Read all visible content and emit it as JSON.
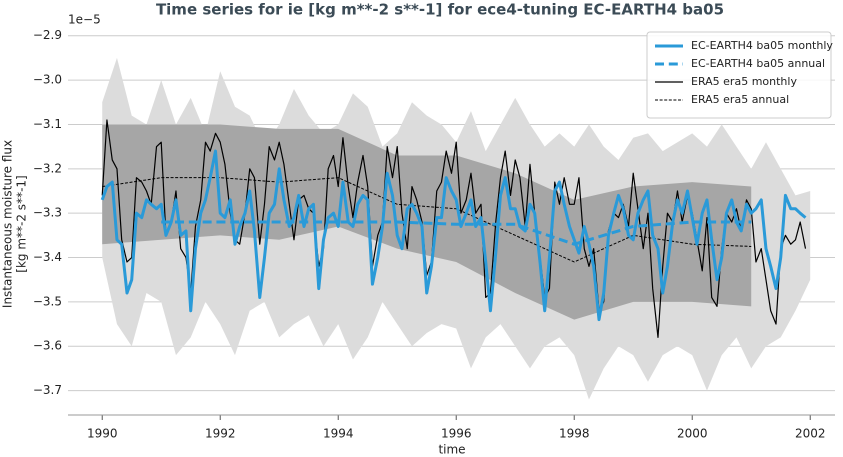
{
  "chart_data": {
    "type": "line",
    "title": "Time series for ie [kg m**-2 s**-1] for ece4-tuning EC-EARTH4 ba05",
    "xlabel": "time",
    "ylabel": [
      "Instantaneous moisture flux",
      "[kg m**-2 s**-1]"
    ],
    "y_offset_label": "1e−5",
    "xlim": [
      1989.42,
      2002.42
    ],
    "xticks": [
      1990,
      1992,
      1994,
      1996,
      1998,
      2000,
      2002
    ],
    "ylim": [
      -3.755,
      -2.86
    ],
    "yticks": [
      {
        "value": -3.7,
        "label": "−3.7"
      },
      {
        "value": -3.6,
        "label": "−3.6"
      },
      {
        "value": -3.5,
        "label": "−3.5"
      },
      {
        "value": -3.4,
        "label": "−3.4"
      },
      {
        "value": -3.3,
        "label": "−3.3"
      },
      {
        "value": -3.2,
        "label": "−3.2"
      },
      {
        "value": -3.1,
        "label": "−3.1"
      },
      {
        "value": -3.0,
        "label": "−3.0"
      },
      {
        "value": -2.9,
        "label": "−2.9"
      }
    ],
    "grid": true,
    "legend_loc": "upper right",
    "x": [
      1990.0,
      1990.08,
      1990.17,
      1990.25,
      1990.33,
      1990.42,
      1990.5,
      1990.58,
      1990.67,
      1990.75,
      1990.83,
      1990.92,
      1991.0,
      1991.08,
      1991.17,
      1991.25,
      1991.33,
      1991.42,
      1991.5,
      1991.58,
      1991.67,
      1991.75,
      1991.83,
      1991.92,
      1992.0,
      1992.08,
      1992.17,
      1992.25,
      1992.33,
      1992.42,
      1992.5,
      1992.58,
      1992.67,
      1992.75,
      1992.83,
      1992.92,
      1993.0,
      1993.08,
      1993.17,
      1993.25,
      1993.33,
      1993.42,
      1993.5,
      1993.58,
      1993.67,
      1993.75,
      1993.83,
      1993.92,
      1994.0,
      1994.08,
      1994.17,
      1994.25,
      1994.33,
      1994.42,
      1994.5,
      1994.58,
      1994.67,
      1994.75,
      1994.83,
      1994.92,
      1995.0,
      1995.08,
      1995.17,
      1995.25,
      1995.33,
      1995.42,
      1995.5,
      1995.58,
      1995.67,
      1995.75,
      1995.83,
      1995.92,
      1996.0,
      1996.08,
      1996.17,
      1996.25,
      1996.33,
      1996.42,
      1996.5,
      1996.58,
      1996.67,
      1996.75,
      1996.83,
      1996.92,
      1997.0,
      1997.08,
      1997.17,
      1997.25,
      1997.33,
      1997.42,
      1997.5,
      1997.58,
      1997.67,
      1997.75,
      1997.83,
      1997.92,
      1998.0,
      1998.08,
      1998.17,
      1998.25,
      1998.33,
      1998.42,
      1998.5,
      1998.58,
      1998.67,
      1998.75,
      1998.83,
      1998.92,
      1999.0,
      1999.08,
      1999.17,
      1999.25,
      1999.33,
      1999.42,
      1999.5,
      1999.58,
      1999.67,
      1999.75,
      1999.83,
      1999.92,
      2000.0,
      2000.08,
      2000.17,
      2000.25,
      2000.33,
      2000.42,
      2000.5,
      2000.58,
      2000.67,
      2000.75,
      2000.83,
      2000.92,
      2001.0,
      2001.08,
      2001.17,
      2001.25,
      2001.33,
      2001.42,
      2001.5,
      2001.58,
      2001.67,
      2001.75,
      2001.83,
      2001.92
    ],
    "bands": [
      {
        "color": "#dcdcdc",
        "x": [
          1990,
          1990.25,
          1990.5,
          1990.75,
          1991,
          1991.25,
          1991.5,
          1991.75,
          1992,
          1992.25,
          1992.5,
          1992.75,
          1993,
          1993.25,
          1993.5,
          1993.75,
          1994,
          1994.25,
          1994.5,
          1994.75,
          1995,
          1995.25,
          1995.5,
          1995.75,
          1996,
          1996.25,
          1996.5,
          1996.75,
          1997,
          1997.25,
          1997.5,
          1997.75,
          1998,
          1998.25,
          1998.5,
          1998.75,
          1999,
          1999.25,
          1999.5,
          1999.75,
          2000,
          2000.25,
          2000.5,
          2000.75,
          2001,
          2001.25,
          2001.5,
          2001.75,
          2002
        ],
        "high": [
          -3.05,
          -2.95,
          -3.08,
          -3.1,
          -3.0,
          -3.1,
          -3.04,
          -3.12,
          -2.98,
          -3.06,
          -3.08,
          -3.15,
          -3.1,
          -3.02,
          -3.08,
          -3.12,
          -3.1,
          -3.03,
          -3.06,
          -3.15,
          -3.12,
          -3.05,
          -3.08,
          -3.1,
          -3.14,
          -3.07,
          -3.16,
          -3.1,
          -3.04,
          -3.1,
          -3.15,
          -3.12,
          -3.15,
          -3.1,
          -3.15,
          -3.18,
          -3.13,
          -3.12,
          -3.16,
          -3.14,
          -3.12,
          -3.15,
          -3.1,
          -3.15,
          -3.2,
          -3.14,
          -3.2,
          -3.26,
          -3.25
        ],
        "low": [
          -3.4,
          -3.55,
          -3.6,
          -3.48,
          -3.5,
          -3.62,
          -3.58,
          -3.5,
          -3.55,
          -3.62,
          -3.52,
          -3.5,
          -3.58,
          -3.55,
          -3.53,
          -3.6,
          -3.55,
          -3.63,
          -3.58,
          -3.5,
          -3.55,
          -3.6,
          -3.57,
          -3.55,
          -3.56,
          -3.65,
          -3.58,
          -3.55,
          -3.6,
          -3.65,
          -3.6,
          -3.58,
          -3.62,
          -3.72,
          -3.65,
          -3.6,
          -3.62,
          -3.68,
          -3.62,
          -3.6,
          -3.62,
          -3.7,
          -3.62,
          -3.58,
          -3.65,
          -3.6,
          -3.58,
          -3.52,
          -3.45
        ]
      },
      {
        "color": "#a6a6a6",
        "x": [
          1990,
          1991,
          1992,
          1993,
          1994,
          1995,
          1996,
          1997,
          1998,
          1999,
          2000,
          2001
        ],
        "high": [
          -3.1,
          -3.1,
          -3.1,
          -3.11,
          -3.11,
          -3.17,
          -3.17,
          -3.21,
          -3.27,
          -3.24,
          -3.23,
          -3.24
        ],
        "low": [
          -3.37,
          -3.36,
          -3.35,
          -3.36,
          -3.33,
          -3.38,
          -3.41,
          -3.48,
          -3.54,
          -3.5,
          -3.5,
          -3.51
        ]
      }
    ],
    "series": [
      {
        "name": "EC-EARTH4 ba05 monthly",
        "color": "#2a9ad8",
        "width": 3,
        "dashed": false,
        "values": [
          -3.27,
          -3.24,
          -3.23,
          -3.36,
          -3.37,
          -3.48,
          -3.45,
          -3.3,
          -3.31,
          -3.27,
          -3.28,
          -3.29,
          -3.28,
          -3.35,
          -3.32,
          -3.27,
          -3.35,
          -3.34,
          -3.52,
          -3.38,
          -3.3,
          -3.27,
          -3.22,
          -3.16,
          -3.3,
          -3.31,
          -3.27,
          -3.37,
          -3.33,
          -3.3,
          -3.25,
          -3.34,
          -3.49,
          -3.4,
          -3.3,
          -3.28,
          -3.2,
          -3.27,
          -3.33,
          -3.31,
          -3.26,
          -3.33,
          -3.29,
          -3.28,
          -3.47,
          -3.36,
          -3.31,
          -3.3,
          -3.33,
          -3.23,
          -3.32,
          -3.33,
          -3.28,
          -3.26,
          -3.27,
          -3.46,
          -3.4,
          -3.33,
          -3.21,
          -3.26,
          -3.35,
          -3.38,
          -3.29,
          -3.28,
          -3.3,
          -3.33,
          -3.48,
          -3.42,
          -3.31,
          -3.31,
          -3.22,
          -3.25,
          -3.27,
          -3.33,
          -3.3,
          -3.27,
          -3.33,
          -3.31,
          -3.41,
          -3.52,
          -3.39,
          -3.26,
          -3.22,
          -3.29,
          -3.29,
          -3.33,
          -3.34,
          -3.28,
          -3.3,
          -3.41,
          -3.52,
          -3.4,
          -3.25,
          -3.23,
          -3.28,
          -3.33,
          -3.36,
          -3.39,
          -3.33,
          -3.37,
          -3.42,
          -3.54,
          -3.48,
          -3.35,
          -3.3,
          -3.26,
          -3.29,
          -3.35,
          -3.36,
          -3.3,
          -3.27,
          -3.25,
          -3.35,
          -3.38,
          -3.48,
          -3.42,
          -3.32,
          -3.27,
          -3.3,
          -3.25,
          -3.31,
          -3.37,
          -3.3,
          -3.27,
          -3.36,
          -3.45,
          -3.4,
          -3.3,
          -3.27,
          -3.32,
          -3.34,
          -3.28,
          -3.3,
          -3.29,
          -3.27,
          -3.38,
          -3.42,
          -3.47,
          -3.4,
          -3.26,
          -3.29,
          -3.29,
          -3.3,
          -3.31
        ]
      },
      {
        "name": "EC-EARTH4 ba05 annual",
        "color": "#2a9ad8",
        "width": 3,
        "dashed": true,
        "x": [
          1991,
          1992,
          1993,
          1994,
          1995,
          1996,
          1997,
          1998,
          1999,
          2000,
          2001
        ],
        "values": [
          -3.32,
          -3.32,
          -3.32,
          -3.32,
          -3.32,
          -3.325,
          -3.325,
          -3.37,
          -3.33,
          -3.32,
          -3.32
        ]
      },
      {
        "name": "ERA5 era5 monthly",
        "color": "#000000",
        "width": 1.2,
        "dashed": false,
        "values": [
          -3.26,
          -3.09,
          -3.18,
          -3.2,
          -3.36,
          -3.41,
          -3.4,
          -3.22,
          -3.23,
          -3.25,
          -3.28,
          -3.15,
          -3.14,
          -3.35,
          -3.32,
          -3.25,
          -3.38,
          -3.4,
          -3.48,
          -3.33,
          -3.27,
          -3.14,
          -3.16,
          -3.12,
          -3.14,
          -3.19,
          -3.3,
          -3.36,
          -3.37,
          -3.3,
          -3.2,
          -3.22,
          -3.37,
          -3.28,
          -3.15,
          -3.18,
          -3.14,
          -3.19,
          -3.28,
          -3.36,
          -3.27,
          -3.26,
          -3.29,
          -3.3,
          -3.42,
          -3.38,
          -3.2,
          -3.17,
          -3.24,
          -3.13,
          -3.24,
          -3.31,
          -3.23,
          -3.17,
          -3.24,
          -3.42,
          -3.35,
          -3.32,
          -3.15,
          -3.22,
          -3.15,
          -3.3,
          -3.38,
          -3.24,
          -3.27,
          -3.32,
          -3.44,
          -3.41,
          -3.25,
          -3.23,
          -3.16,
          -3.21,
          -3.14,
          -3.3,
          -3.27,
          -3.21,
          -3.3,
          -3.28,
          -3.49,
          -3.48,
          -3.32,
          -3.22,
          -3.16,
          -3.26,
          -3.18,
          -3.22,
          -3.33,
          -3.19,
          -3.3,
          -3.4,
          -3.49,
          -3.47,
          -3.23,
          -3.28,
          -3.22,
          -3.28,
          -3.28,
          -3.22,
          -3.38,
          -3.42,
          -3.38,
          -3.52,
          -3.5,
          -3.34,
          -3.3,
          -3.31,
          -3.28,
          -3.33,
          -3.21,
          -3.29,
          -3.38,
          -3.3,
          -3.47,
          -3.58,
          -3.42,
          -3.3,
          -3.32,
          -3.25,
          -3.32,
          -3.26,
          -3.3,
          -3.36,
          -3.43,
          -3.31,
          -3.49,
          -3.51,
          -3.38,
          -3.3,
          -3.32,
          -3.29,
          -3.34,
          -3.27,
          -3.29,
          -3.41,
          -3.38,
          -3.45,
          -3.52,
          -3.55,
          -3.38,
          -3.35,
          -3.37,
          -3.36,
          -3.32,
          -3.38
        ]
      },
      {
        "name": "ERA5 era5 annual",
        "color": "#000000",
        "width": 1,
        "dashed": true,
        "x": [
          1990,
          1991,
          1992,
          1993,
          1994,
          1995,
          1996,
          1997,
          1998,
          1999,
          2000,
          2001
        ],
        "values": [
          -3.24,
          -3.22,
          -3.22,
          -3.23,
          -3.22,
          -3.28,
          -3.29,
          -3.35,
          -3.41,
          -3.35,
          -3.37,
          -3.375
        ]
      }
    ]
  }
}
